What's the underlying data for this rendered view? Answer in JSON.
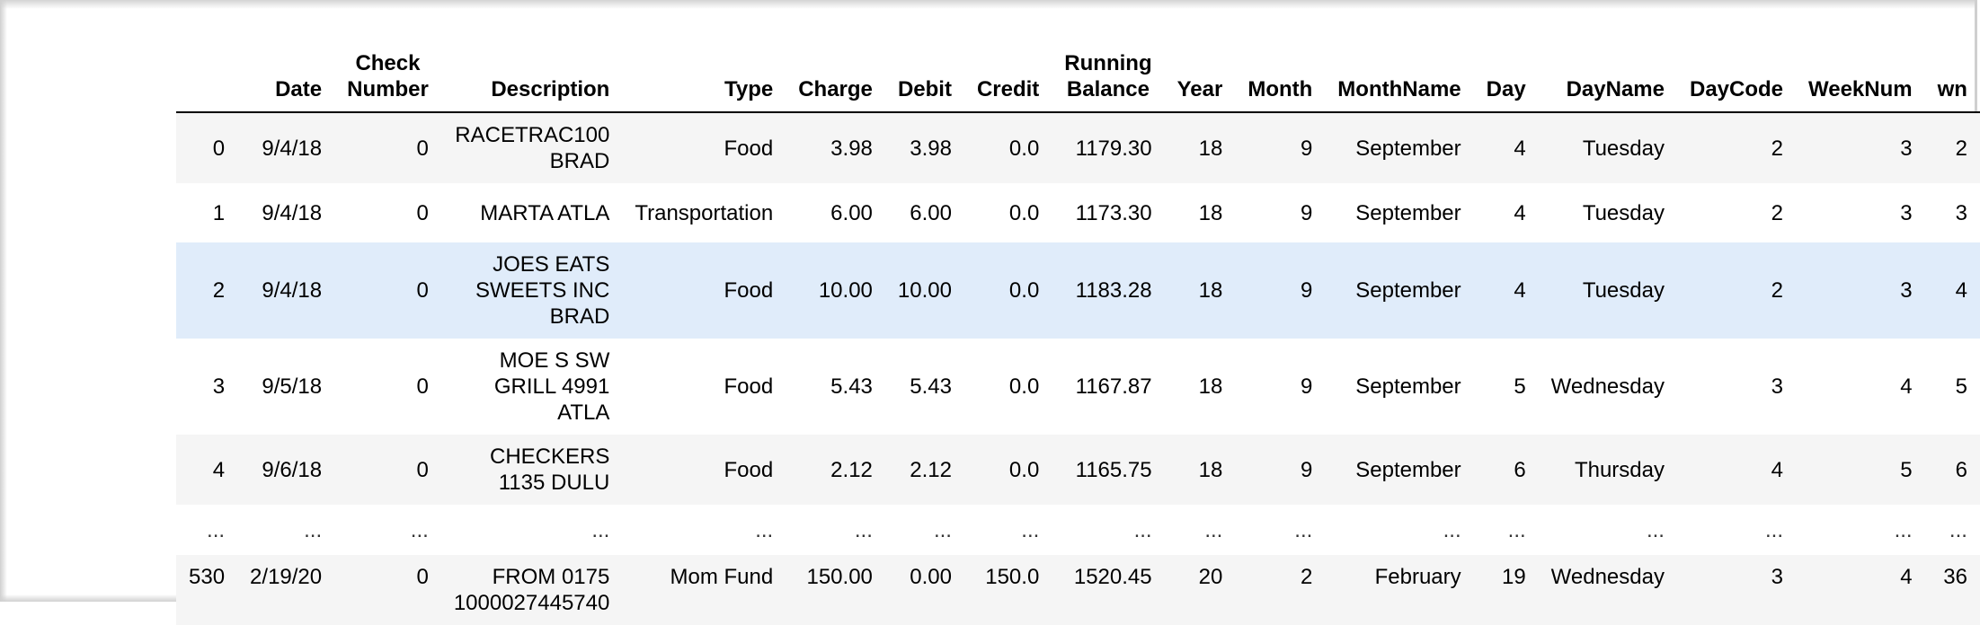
{
  "table": {
    "columns": [
      "",
      "Date",
      "Check\nNumber",
      "Description",
      "Type",
      "Charge",
      "Debit",
      "Credit",
      "Running\nBalance",
      "Year",
      "Month",
      "MonthName",
      "Day",
      "DayName",
      "DayCode",
      "WeekNum",
      "wn"
    ],
    "rows": [
      [
        "0",
        "9/4/18",
        "0",
        "RACETRAC100\nBRAD",
        "Food",
        "3.98",
        "3.98",
        "0.0",
        "1179.30",
        "18",
        "9",
        "September",
        "4",
        "Tuesday",
        "2",
        "3",
        "2"
      ],
      [
        "1",
        "9/4/18",
        "0",
        "MARTA ATLA",
        "Transportation",
        "6.00",
        "6.00",
        "0.0",
        "1173.30",
        "18",
        "9",
        "September",
        "4",
        "Tuesday",
        "2",
        "3",
        "3"
      ],
      [
        "2",
        "9/4/18",
        "0",
        "JOES EATS\nSWEETS INC\nBRAD",
        "Food",
        "10.00",
        "10.00",
        "0.0",
        "1183.28",
        "18",
        "9",
        "September",
        "4",
        "Tuesday",
        "2",
        "3",
        "4"
      ],
      [
        "3",
        "9/5/18",
        "0",
        "MOE S SW\nGRILL 4991\nATLA",
        "Food",
        "5.43",
        "5.43",
        "0.0",
        "1167.87",
        "18",
        "9",
        "September",
        "5",
        "Wednesday",
        "3",
        "4",
        "5"
      ],
      [
        "4",
        "9/6/18",
        "0",
        "CHECKERS\n1135 DULU",
        "Food",
        "2.12",
        "2.12",
        "0.0",
        "1165.75",
        "18",
        "9",
        "September",
        "6",
        "Thursday",
        "4",
        "5",
        "6"
      ],
      [
        "...",
        "...",
        "...",
        "...",
        "...",
        "...",
        "...",
        "...",
        "...",
        "...",
        "...",
        "...",
        "...",
        "...",
        "...",
        "...",
        "..."
      ],
      [
        "530",
        "2/19/20",
        "0",
        "FROM 0175\n1000027445740",
        "Mom Fund",
        "150.00",
        "0.00",
        "150.0",
        "1520.45",
        "20",
        "2",
        "February",
        "19",
        "Wednesday",
        "3",
        "4",
        "36"
      ]
    ]
  }
}
